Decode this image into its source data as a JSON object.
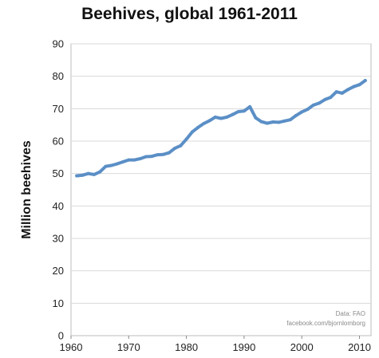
{
  "chart_data": {
    "type": "line",
    "title": "Beehives, global 1961-2011",
    "xlabel": "",
    "ylabel": "Million beehives",
    "xlim": [
      1960,
      2012
    ],
    "ylim": [
      0,
      90
    ],
    "xticks": [
      1960,
      1970,
      1980,
      1990,
      2000,
      2010
    ],
    "yticks": [
      0,
      10,
      20,
      30,
      40,
      50,
      60,
      70,
      80,
      90
    ],
    "grid": "horizontal",
    "line_color": "#5b8fc6",
    "annotations": [
      "Data: FAO",
      "facebook.com/bjornlomborg"
    ],
    "series": [
      {
        "name": "",
        "x": [
          1961,
          1962,
          1963,
          1964,
          1965,
          1966,
          1967,
          1968,
          1969,
          1970,
          1971,
          1972,
          1973,
          1974,
          1975,
          1976,
          1977,
          1978,
          1979,
          1980,
          1981,
          1982,
          1983,
          1984,
          1985,
          1986,
          1987,
          1988,
          1989,
          1990,
          1991,
          1992,
          1993,
          1994,
          1995,
          1996,
          1997,
          1998,
          1999,
          2000,
          2001,
          2002,
          2003,
          2004,
          2005,
          2006,
          2007,
          2008,
          2009,
          2010,
          2011
        ],
        "values": [
          49.3,
          49.5,
          50.0,
          49.7,
          50.5,
          52.2,
          52.5,
          53.0,
          53.6,
          54.2,
          54.2,
          54.6,
          55.2,
          55.3,
          55.8,
          55.9,
          56.4,
          57.8,
          58.6,
          60.6,
          62.8,
          64.2,
          65.4,
          66.3,
          67.4,
          67.0,
          67.4,
          68.2,
          69.1,
          69.3,
          70.6,
          67.2,
          66.0,
          65.5,
          65.9,
          65.8,
          66.2,
          66.6,
          67.9,
          69.0,
          69.8,
          71.1,
          71.7,
          72.8,
          73.5,
          75.2,
          74.8,
          75.9,
          76.8,
          77.4,
          78.7
        ]
      }
    ]
  }
}
